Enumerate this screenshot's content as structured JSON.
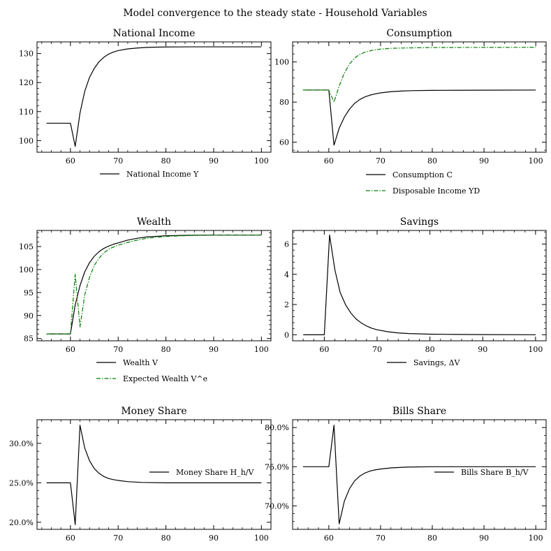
{
  "suptitle": "Model convergence to the steady state - Household Variables",
  "colors": {
    "black": "#000000",
    "green": "#008000"
  },
  "chart_data": [
    {
      "type": "line",
      "title": "National Income",
      "xlim": [
        53,
        102
      ],
      "ylim": [
        96,
        134
      ],
      "xticks": [
        60,
        70,
        80,
        90,
        100
      ],
      "yticks": [
        100,
        110,
        120,
        130
      ],
      "ytick_format": "int",
      "legend": "below",
      "series": [
        {
          "name": "National Income Y",
          "color": "#000000",
          "style": "solid",
          "points": [
            [
              55,
              106
            ],
            [
              56,
              106
            ],
            [
              57,
              106
            ],
            [
              58,
              106
            ],
            [
              59,
              106
            ],
            [
              60,
              106
            ],
            [
              61,
              98
            ],
            [
              62,
              109.5
            ],
            [
              63,
              117
            ],
            [
              64,
              121.8
            ],
            [
              65,
              124.9
            ],
            [
              66,
              127.2
            ],
            [
              67,
              128.7
            ],
            [
              68,
              129.8
            ],
            [
              69,
              130.5
            ],
            [
              70,
              131
            ],
            [
              72,
              131.6
            ],
            [
              74,
              131.9
            ],
            [
              76,
              132.1
            ],
            [
              78,
              132.2
            ],
            [
              80,
              132.25
            ],
            [
              85,
              132.3
            ],
            [
              90,
              132.3
            ],
            [
              100,
              132.3
            ]
          ]
        }
      ]
    },
    {
      "type": "line",
      "title": "Consumption",
      "xlim": [
        53,
        102
      ],
      "ylim": [
        55,
        110
      ],
      "xticks": [
        60,
        70,
        80,
        90,
        100
      ],
      "yticks": [
        60,
        80,
        100
      ],
      "ytick_format": "int",
      "legend": "below",
      "series": [
        {
          "name": "Consumption C",
          "color": "#000000",
          "style": "solid",
          "points": [
            [
              55,
              86
            ],
            [
              56,
              86
            ],
            [
              57,
              86
            ],
            [
              58,
              86
            ],
            [
              59,
              86
            ],
            [
              60,
              86
            ],
            [
              61,
              58.5
            ],
            [
              62,
              67
            ],
            [
              63,
              72.5
            ],
            [
              64,
              76.5
            ],
            [
              65,
              79.4
            ],
            [
              66,
              81.3
            ],
            [
              67,
              82.6
            ],
            [
              68,
              83.5
            ],
            [
              69,
              84.1
            ],
            [
              70,
              84.6
            ],
            [
              72,
              85.2
            ],
            [
              74,
              85.5
            ],
            [
              76,
              85.7
            ],
            [
              80,
              85.85
            ],
            [
              85,
              85.9
            ],
            [
              90,
              85.95
            ],
            [
              100,
              86
            ]
          ]
        },
        {
          "name": "Disposable Income YD",
          "color": "#008000",
          "style": "dashdot",
          "points": [
            [
              55,
              86
            ],
            [
              56,
              86
            ],
            [
              57,
              86
            ],
            [
              58,
              86
            ],
            [
              59,
              86
            ],
            [
              60,
              86
            ],
            [
              61,
              80
            ],
            [
              62,
              88
            ],
            [
              63,
              94.5
            ],
            [
              64,
              99
            ],
            [
              65,
              102
            ],
            [
              66,
              103.8
            ],
            [
              67,
              104.9
            ],
            [
              68,
              105.6
            ],
            [
              69,
              106.1
            ],
            [
              70,
              106.4
            ],
            [
              72,
              106.8
            ],
            [
              75,
              107
            ],
            [
              80,
              107.2
            ],
            [
              90,
              107.25
            ],
            [
              100,
              107.3
            ]
          ]
        }
      ]
    },
    {
      "type": "line",
      "title": "Wealth",
      "xlim": [
        53,
        102
      ],
      "ylim": [
        84.5,
        108.5
      ],
      "xticks": [
        60,
        70,
        80,
        90,
        100
      ],
      "yticks": [
        85,
        90,
        95,
        100,
        105
      ],
      "ytick_format": "int",
      "legend": "below",
      "series": [
        {
          "name": "Wealth V",
          "color": "#000000",
          "style": "solid",
          "points": [
            [
              55,
              86
            ],
            [
              56,
              86
            ],
            [
              57,
              86
            ],
            [
              58,
              86
            ],
            [
              59,
              86
            ],
            [
              60,
              86
            ],
            [
              61,
              92.3
            ],
            [
              62,
              96.5
            ],
            [
              63,
              99.5
            ],
            [
              64,
              101.5
            ],
            [
              65,
              102.9
            ],
            [
              66,
              103.9
            ],
            [
              67,
              104.6
            ],
            [
              68,
              105.1
            ],
            [
              69,
              105.5
            ],
            [
              70,
              105.8
            ],
            [
              72,
              106.4
            ],
            [
              74,
              106.8
            ],
            [
              76,
              107.1
            ],
            [
              80,
              107.35
            ],
            [
              85,
              107.45
            ],
            [
              90,
              107.5
            ],
            [
              100,
              107.5
            ]
          ]
        },
        {
          "name": "Expected Wealth V^e",
          "color": "#008000",
          "style": "dashdot",
          "points": [
            [
              55,
              86
            ],
            [
              56,
              86
            ],
            [
              57,
              86
            ],
            [
              58,
              86
            ],
            [
              59,
              86
            ],
            [
              60,
              86
            ],
            [
              61,
              99
            ],
            [
              62,
              87.5
            ],
            [
              63,
              94.5
            ],
            [
              64,
              98.3
            ],
            [
              65,
              100.9
            ],
            [
              66,
              102.5
            ],
            [
              67,
              103.6
            ],
            [
              68,
              104.4
            ],
            [
              69,
              104.9
            ],
            [
              70,
              105.3
            ],
            [
              72,
              105.9
            ],
            [
              74,
              106.4
            ],
            [
              76,
              106.8
            ],
            [
              80,
              107.2
            ],
            [
              85,
              107.4
            ],
            [
              90,
              107.5
            ],
            [
              100,
              107.5
            ]
          ]
        }
      ]
    },
    {
      "type": "line",
      "title": "Savings",
      "xlim": [
        54,
        102
      ],
      "ylim": [
        -0.4,
        6.9
      ],
      "xticks": [
        60,
        70,
        80,
        90,
        100
      ],
      "yticks": [
        0,
        2,
        4,
        6
      ],
      "ytick_format": "int",
      "legend": "below",
      "series": [
        {
          "name": "Savings, ΔV",
          "color": "#000000",
          "style": "solid",
          "points": [
            [
              56,
              0
            ],
            [
              57,
              0
            ],
            [
              58,
              0
            ],
            [
              59,
              0
            ],
            [
              60,
              0
            ],
            [
              61,
              6.6
            ],
            [
              62,
              4.3
            ],
            [
              63,
              2.8
            ],
            [
              64,
              2.0
            ],
            [
              65,
              1.45
            ],
            [
              66,
              1.05
            ],
            [
              67,
              0.78
            ],
            [
              68,
              0.58
            ],
            [
              69,
              0.43
            ],
            [
              70,
              0.33
            ],
            [
              72,
              0.2
            ],
            [
              74,
              0.12
            ],
            [
              76,
              0.08
            ],
            [
              80,
              0.04
            ],
            [
              85,
              0.02
            ],
            [
              90,
              0.01
            ],
            [
              100,
              0
            ]
          ]
        }
      ]
    },
    {
      "type": "line",
      "title": "Money Share",
      "xlim": [
        53,
        102
      ],
      "ylim": [
        0.191,
        0.33
      ],
      "xticks": [
        60,
        70,
        80,
        90,
        100
      ],
      "yticks": [
        0.2,
        0.25,
        0.3
      ],
      "ytick_format": "pct",
      "legend": "right",
      "series": [
        {
          "name": "Money Share H_h/V",
          "color": "#000000",
          "style": "solid",
          "points": [
            [
              55,
              0.25
            ],
            [
              56,
              0.25
            ],
            [
              57,
              0.25
            ],
            [
              58,
              0.25
            ],
            [
              59,
              0.25
            ],
            [
              60,
              0.25
            ],
            [
              61,
              0.197
            ],
            [
              62,
              0.323
            ],
            [
              63,
              0.294
            ],
            [
              64,
              0.278
            ],
            [
              65,
              0.268
            ],
            [
              66,
              0.262
            ],
            [
              67,
              0.258
            ],
            [
              68,
              0.2555
            ],
            [
              69,
              0.254
            ],
            [
              70,
              0.253
            ],
            [
              72,
              0.2515
            ],
            [
              75,
              0.2505
            ],
            [
              80,
              0.25
            ],
            [
              90,
              0.25
            ],
            [
              100,
              0.25
            ]
          ]
        }
      ]
    },
    {
      "type": "line",
      "title": "Bills Share",
      "xlim": [
        53,
        102
      ],
      "ylim": [
        0.67,
        0.81
      ],
      "xticks": [
        60,
        70,
        80,
        90,
        100
      ],
      "yticks": [
        0.7,
        0.75,
        0.8
      ],
      "ytick_format": "pct",
      "legend": "right",
      "series": [
        {
          "name": "Bills Share B_h/V",
          "color": "#000000",
          "style": "solid",
          "points": [
            [
              55,
              0.75
            ],
            [
              56,
              0.75
            ],
            [
              57,
              0.75
            ],
            [
              58,
              0.75
            ],
            [
              59,
              0.75
            ],
            [
              60,
              0.75
            ],
            [
              61,
              0.803
            ],
            [
              62,
              0.677
            ],
            [
              63,
              0.706
            ],
            [
              64,
              0.722
            ],
            [
              65,
              0.732
            ],
            [
              66,
              0.738
            ],
            [
              67,
              0.742
            ],
            [
              68,
              0.7445
            ],
            [
              69,
              0.746
            ],
            [
              70,
              0.747
            ],
            [
              72,
              0.7485
            ],
            [
              75,
              0.7495
            ],
            [
              80,
              0.75
            ],
            [
              90,
              0.75
            ],
            [
              100,
              0.75
            ]
          ]
        }
      ]
    }
  ]
}
